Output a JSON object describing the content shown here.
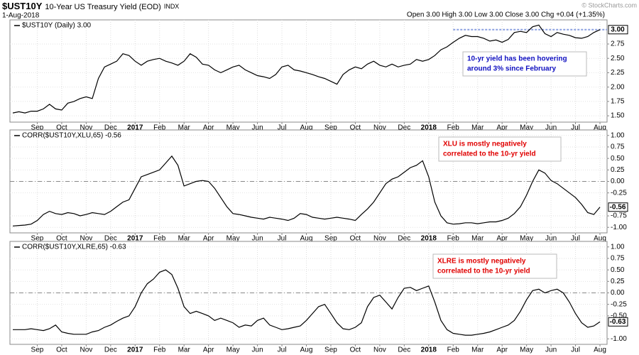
{
  "header": {
    "symbol": "$UST10Y",
    "description": "10-Year US Treasury Yield (EOD)",
    "exchange": "INDX",
    "date": "1-Aug-2018",
    "quote": "Open 3.00 High 3.00 Low 3.00 Close 3.00 Chg +0.04 (+1.35%)",
    "credit": "© StockCharts.com"
  },
  "chart_data": [
    {
      "type": "line",
      "categories": [
        null,
        null,
        null,
        null,
        "Sep",
        null,
        null,
        null,
        "Oct",
        null,
        null,
        null,
        "Nov",
        null,
        null,
        null,
        "Dec",
        null,
        null,
        null,
        "2017",
        null,
        null,
        null,
        "Feb",
        null,
        null,
        null,
        "Mar",
        null,
        null,
        null,
        "Apr",
        null,
        null,
        null,
        "May",
        null,
        null,
        null,
        "Jun",
        null,
        null,
        null,
        "Jul",
        null,
        null,
        null,
        "Aug",
        null,
        null,
        null,
        "Sep",
        null,
        null,
        null,
        "Oct",
        null,
        null,
        null,
        "Nov",
        null,
        null,
        null,
        "Dec",
        null,
        null,
        null,
        "2018",
        null,
        null,
        null,
        "Feb",
        null,
        null,
        null,
        "Mar",
        null,
        null,
        null,
        "Apr",
        null,
        null,
        null,
        "May",
        null,
        null,
        null,
        "Jun",
        null,
        null,
        null,
        "Jul",
        null,
        null,
        null,
        "Aug"
      ],
      "series": [
        {
          "name": "$UST10Y (Daily) 3.00",
          "color": "#000000",
          "values": [
            1.55,
            1.57,
            1.55,
            1.58,
            1.58,
            1.62,
            1.7,
            1.62,
            1.6,
            1.72,
            1.75,
            1.8,
            1.83,
            1.8,
            2.15,
            2.35,
            2.4,
            2.45,
            2.58,
            2.55,
            2.45,
            2.38,
            2.45,
            2.48,
            2.5,
            2.45,
            2.42,
            2.38,
            2.45,
            2.58,
            2.52,
            2.4,
            2.38,
            2.3,
            2.25,
            2.3,
            2.35,
            2.38,
            2.3,
            2.25,
            2.2,
            2.18,
            2.15,
            2.22,
            2.35,
            2.38,
            2.3,
            2.28,
            2.25,
            2.22,
            2.18,
            2.15,
            2.1,
            2.05,
            2.22,
            2.3,
            2.35,
            2.32,
            2.4,
            2.45,
            2.38,
            2.35,
            2.4,
            2.35,
            2.38,
            2.4,
            2.48,
            2.45,
            2.48,
            2.55,
            2.65,
            2.7,
            2.78,
            2.85,
            2.9,
            2.88,
            2.88,
            2.85,
            2.8,
            2.82,
            2.78,
            2.83,
            2.95,
            2.97,
            2.95,
            3.05,
            3.08,
            2.93,
            2.88,
            2.95,
            2.92,
            2.9,
            2.86,
            2.85,
            2.88,
            2.95,
            3.0
          ]
        }
      ],
      "last_value_label": "3.00",
      "ylim": [
        1.39,
        3.17
      ],
      "yticks": [
        {
          "value": 1.5,
          "label": "1.50"
        },
        {
          "value": 1.75,
          "label": "1.75"
        },
        {
          "value": 2.0,
          "label": "2.00"
        },
        {
          "value": 2.25,
          "label": "2.25"
        },
        {
          "value": 2.5,
          "label": "2.50"
        },
        {
          "value": 2.75,
          "label": "2.75"
        }
      ],
      "hline": 3,
      "hline_color": "#8a9fe0",
      "annotation": [
        "10-yr yield has been hovering",
        "around 3% since February"
      ],
      "annotation_color": "#1010c0",
      "grid": true
    },
    {
      "type": "line",
      "categories": [
        null,
        null,
        null,
        null,
        "Sep",
        null,
        null,
        null,
        "Oct",
        null,
        null,
        null,
        "Nov",
        null,
        null,
        null,
        "Dec",
        null,
        null,
        null,
        "2017",
        null,
        null,
        null,
        "Feb",
        null,
        null,
        null,
        "Mar",
        null,
        null,
        null,
        "Apr",
        null,
        null,
        null,
        "May",
        null,
        null,
        null,
        "Jun",
        null,
        null,
        null,
        "Jul",
        null,
        null,
        null,
        "Aug",
        null,
        null,
        null,
        "Sep",
        null,
        null,
        null,
        "Oct",
        null,
        null,
        null,
        "Nov",
        null,
        null,
        null,
        "Dec",
        null,
        null,
        null,
        "2018",
        null,
        null,
        null,
        "Feb",
        null,
        null,
        null,
        "Mar",
        null,
        null,
        null,
        "Apr",
        null,
        null,
        null,
        "May",
        null,
        null,
        null,
        "Jun",
        null,
        null,
        null,
        "Jul",
        null,
        null,
        null,
        "Aug"
      ],
      "series": [
        {
          "name": "CORR($UST10Y,XLU,65) -0.56",
          "color": "#000000",
          "values": [
            -0.97,
            -0.96,
            -0.95,
            -0.93,
            -0.85,
            -0.72,
            -0.65,
            -0.7,
            -0.72,
            -0.68,
            -0.7,
            -0.75,
            -0.72,
            -0.68,
            -0.7,
            -0.72,
            -0.65,
            -0.55,
            -0.45,
            -0.4,
            -0.15,
            0.1,
            0.15,
            0.2,
            0.25,
            0.4,
            0.55,
            0.35,
            -0.1,
            -0.05,
            0.0,
            0.02,
            0.0,
            -0.15,
            -0.35,
            -0.55,
            -0.7,
            -0.72,
            -0.75,
            -0.78,
            -0.8,
            -0.82,
            -0.78,
            -0.8,
            -0.82,
            -0.85,
            -0.8,
            -0.7,
            -0.72,
            -0.78,
            -0.8,
            -0.82,
            -0.8,
            -0.78,
            -0.8,
            -0.82,
            -0.85,
            -0.72,
            -0.6,
            -0.45,
            -0.25,
            -0.05,
            0.05,
            0.1,
            0.2,
            0.3,
            0.35,
            0.45,
            0.1,
            -0.45,
            -0.75,
            -0.9,
            -0.93,
            -0.92,
            -0.9,
            -0.9,
            -0.92,
            -0.9,
            -0.88,
            -0.88,
            -0.85,
            -0.8,
            -0.7,
            -0.55,
            -0.3,
            0.0,
            0.25,
            0.18,
            0.02,
            -0.05,
            -0.15,
            -0.25,
            -0.35,
            -0.5,
            -0.68,
            -0.72,
            -0.56
          ]
        }
      ],
      "last_value_label": "-0.56",
      "ylim": [
        -1.12,
        1.12
      ],
      "yticks": [
        {
          "value": -1,
          "label": "-1.00"
        },
        {
          "value": -0.75,
          "label": "-0.75"
        },
        {
          "value": -0.25,
          "label": "-0.25"
        },
        {
          "value": 0,
          "label": "0.00"
        },
        {
          "value": 0.25,
          "label": "0.25"
        },
        {
          "value": 0.5,
          "label": "0.50"
        },
        {
          "value": 0.75,
          "label": "0.75"
        },
        {
          "value": 1,
          "label": "1.00"
        }
      ],
      "hline": 0,
      "hline_color": "#888888",
      "annotation": [
        "XLU is mostly negatively",
        "correlated to the 10-yr yield"
      ],
      "annotation_color": "#e00000",
      "grid": true
    },
    {
      "type": "line",
      "categories": [
        null,
        null,
        null,
        null,
        "Sep",
        null,
        null,
        null,
        "Oct",
        null,
        null,
        null,
        "Nov",
        null,
        null,
        null,
        "Dec",
        null,
        null,
        null,
        "2017",
        null,
        null,
        null,
        "Feb",
        null,
        null,
        null,
        "Mar",
        null,
        null,
        null,
        "Apr",
        null,
        null,
        null,
        "May",
        null,
        null,
        null,
        "Jun",
        null,
        null,
        null,
        "Jul",
        null,
        null,
        null,
        "Aug",
        null,
        null,
        null,
        "Sep",
        null,
        null,
        null,
        "Oct",
        null,
        null,
        null,
        "Nov",
        null,
        null,
        null,
        "Dec",
        null,
        null,
        null,
        "2018",
        null,
        null,
        null,
        "Feb",
        null,
        null,
        null,
        "Mar",
        null,
        null,
        null,
        "Apr",
        null,
        null,
        null,
        "May",
        null,
        null,
        null,
        "Jun",
        null,
        null,
        null,
        "Jul",
        null,
        null,
        null,
        "Aug"
      ],
      "series": [
        {
          "name": "CORR($UST10Y,XLRE,65) -0.63",
          "color": "#000000",
          "values": [
            -0.8,
            -0.8,
            -0.8,
            -0.78,
            -0.8,
            -0.82,
            -0.78,
            -0.7,
            -0.85,
            -0.88,
            -0.9,
            -0.9,
            -0.9,
            -0.85,
            -0.82,
            -0.75,
            -0.7,
            -0.62,
            -0.55,
            -0.5,
            -0.3,
            0.0,
            0.2,
            0.3,
            0.45,
            0.5,
            0.4,
            0.1,
            -0.3,
            -0.45,
            -0.4,
            -0.45,
            -0.5,
            -0.6,
            -0.55,
            -0.6,
            -0.65,
            -0.75,
            -0.7,
            -0.72,
            -0.6,
            -0.55,
            -0.7,
            -0.75,
            -0.8,
            -0.78,
            -0.75,
            -0.72,
            -0.6,
            -0.45,
            -0.3,
            -0.25,
            -0.45,
            -0.65,
            -0.78,
            -0.8,
            -0.75,
            -0.65,
            -0.3,
            -0.1,
            -0.05,
            -0.2,
            -0.35,
            -0.1,
            0.1,
            0.12,
            0.05,
            0.1,
            0.15,
            -0.2,
            -0.6,
            -0.8,
            -0.88,
            -0.9,
            -0.92,
            -0.92,
            -0.9,
            -0.88,
            -0.85,
            -0.8,
            -0.75,
            -0.7,
            -0.6,
            -0.4,
            -0.15,
            0.05,
            0.08,
            0.0,
            0.05,
            0.08,
            0.0,
            -0.2,
            -0.45,
            -0.65,
            -0.75,
            -0.72,
            -0.63
          ]
        }
      ],
      "last_value_label": "-0.63",
      "ylim": [
        -1.12,
        1.12
      ],
      "yticks": [
        {
          "value": -1,
          "label": "-1.00"
        },
        {
          "value": -0.5,
          "label": "-0.50"
        },
        {
          "value": -0.25,
          "label": "-0.25"
        },
        {
          "value": 0,
          "label": "0.00"
        },
        {
          "value": 0.25,
          "label": "0.25"
        },
        {
          "value": 0.5,
          "label": "0.50"
        },
        {
          "value": 0.75,
          "label": "0.75"
        },
        {
          "value": 1,
          "label": "1.00"
        }
      ],
      "hline": 0,
      "hline_color": "#888888",
      "annotation": [
        "XLRE is mostly negatively",
        "correlated to the 10-yr yield"
      ],
      "annotation_color": "#e00000",
      "grid": true
    }
  ]
}
